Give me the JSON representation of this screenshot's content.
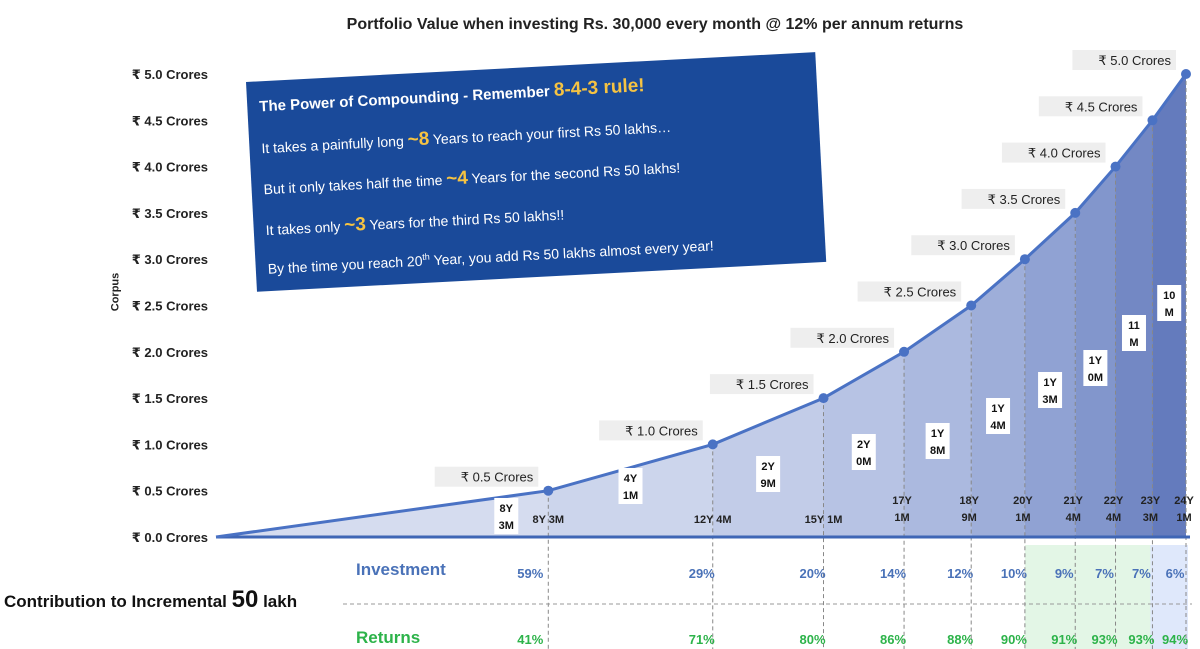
{
  "chart_data": {
    "type": "area",
    "title": "Portfolio Value when investing Rs. 30,000 every month @ 12% per annum returns",
    "ylabel": "Corpus",
    "yticks": [
      "₹ 0.0 Crores",
      "₹ 0.5 Crores",
      "₹ 1.0 Crores",
      "₹ 1.5 Crores",
      "₹ 2.0 Crores",
      "₹ 2.5 Crores",
      "₹ 3.0 Crores",
      "₹ 3.5 Crores",
      "₹ 4.0 Crores",
      "₹ 4.5 Crores",
      "₹ 5.0 Crores"
    ],
    "ylim": [
      0,
      5.0
    ],
    "xlim_years": [
      0,
      24.083
    ],
    "series": [
      {
        "x_years": [
          0,
          8.25,
          12.333,
          15.083,
          17.083,
          18.75,
          20.083,
          21.333,
          22.333,
          23.25,
          24.083
        ],
        "y": [
          0,
          0.5,
          1.0,
          1.5,
          2.0,
          2.5,
          3.0,
          3.5,
          4.0,
          4.5,
          5.0
        ]
      }
    ],
    "milestone_labels": [
      "₹ 0.5 Crores",
      "₹ 1.0 Crores",
      "₹ 1.5 Crores",
      "₹ 2.0 Crores",
      "₹ 2.5 Crores",
      "₹ 3.0 Crores",
      "₹ 3.5 Crores",
      "₹ 4.0 Crores",
      "₹ 4.5 Crores",
      "₹ 5.0 Crores"
    ],
    "time_labels": [
      "8Y 3M",
      "12Y 4M",
      "15Y 1M",
      "17Y 1M",
      "18Y 9M",
      "20Y 1M",
      "21Y 4M",
      "22Y 4M",
      "23Y 3M",
      "24Y 1M"
    ],
    "duration_labels": [
      "8Y 3M",
      "4Y 1M",
      "2Y 9M",
      "2Y 0M",
      "1Y 8M",
      "1Y 4M",
      "1Y 3M",
      "1Y 0M",
      "11 M",
      "10 M"
    ],
    "colors": {
      "line": "#4a72c4",
      "band_colors": [
        "#d5dcef",
        "#ccd5ec",
        "#c2cce8",
        "#b7c3e4",
        "#abb9df",
        "#9eaed9",
        "#90a2d3",
        "#8296cc",
        "#7388c4",
        "#647bbd"
      ],
      "investment": "#4a72b8",
      "returns": "#2db34a",
      "green_highlight": "#e3f6e6",
      "blue_highlight": "#dfe8fb"
    }
  },
  "info_box": {
    "line1": "The Power of Compounding - Remember",
    "line1_hl": "8-4-3 rule!",
    "line2_a": "It takes a painfully long",
    "line2_hl": "~8",
    "line2_b": "Years to reach your first Rs 50 lakhs…",
    "line3_a": "But it only takes half the time",
    "line3_hl": "~4",
    "line3_b": "Years for the second Rs 50 lakhs!",
    "line4_a": "It takes only",
    "line4_hl": "~3",
    "line4_b": "Years for the third Rs 50 lakhs!!",
    "line5_a": "By the time you reach 20",
    "line5_sup": "th",
    "line5_b": "Year, you add Rs 50 lakhs almost every year!"
  },
  "contribution": {
    "label_a": "Contribution to Incremental",
    "label_num": "50",
    "label_b": "lakh",
    "investment_label": "Investment",
    "returns_label": "Returns",
    "investment_pct": [
      "59%",
      "29%",
      "20%",
      "14%",
      "12%",
      "10%",
      "9%",
      "7%",
      "7%",
      "6%"
    ],
    "returns_pct": [
      "41%",
      "71%",
      "80%",
      "86%",
      "88%",
      "90%",
      "91%",
      "93%",
      "93%",
      "94%"
    ]
  }
}
